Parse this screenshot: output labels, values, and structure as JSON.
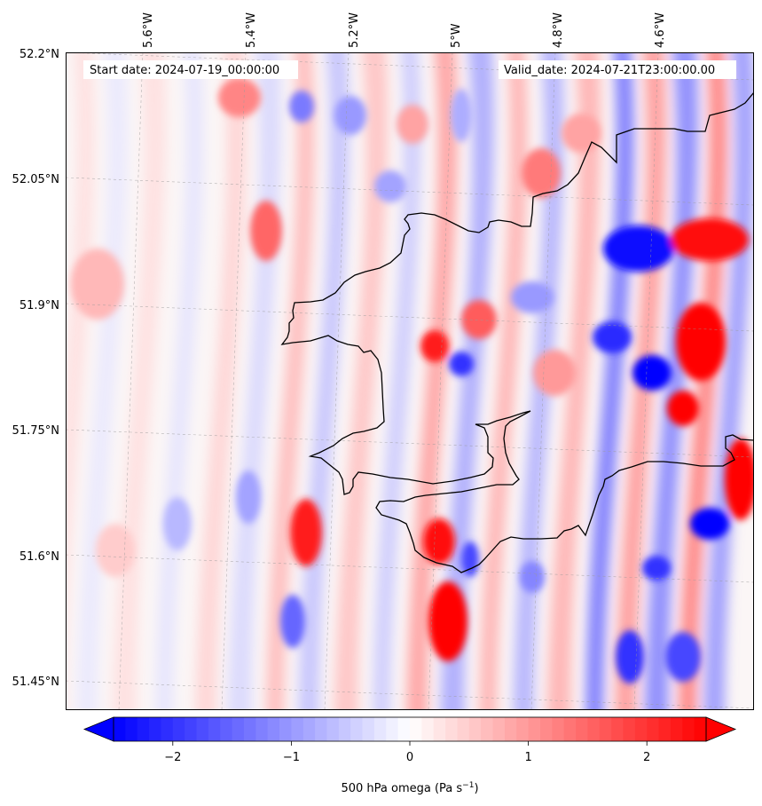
{
  "header": {
    "start_date": "Start date: 2024-07-19_00:00:00",
    "valid_date": "Valid_date: 2024-07-21T23:00:00.00"
  },
  "map": {
    "projection": "lambert-conformal",
    "field": "500 hPa omega",
    "extent": {
      "lon": [
        -5.75,
        -4.45
      ],
      "lat": [
        51.42,
        52.2
      ]
    },
    "lon_ticks": [
      "5.6°W",
      "5.4°W",
      "5.2°W",
      "5°W",
      "4.8°W",
      "4.6°W"
    ],
    "lat_ticks": [
      "52.2°N",
      "52.05°N",
      "51.9°N",
      "51.75°N",
      "51.6°N",
      "51.45°N"
    ],
    "gridlines": true,
    "coastline_color": "#000000",
    "colormap": "bwr",
    "features": [
      {
        "type": "coastline",
        "region": "Pembrokeshire / Ceredigion coast (Wales)"
      },
      {
        "type": "coastline",
        "region": "Gower / Carmarthen Bay"
      }
    ]
  },
  "colorbar": {
    "min": -2.5,
    "max": 2.5,
    "ticks": [
      "−2",
      "−1",
      "0",
      "1",
      "2"
    ],
    "label": "500 hPa omega (Pa s",
    "label_sup": "−1",
    "label_close": ")",
    "extend": "both",
    "color_low": "#0000ff",
    "color_mid": "#ffffff",
    "color_high": "#ff0000"
  }
}
